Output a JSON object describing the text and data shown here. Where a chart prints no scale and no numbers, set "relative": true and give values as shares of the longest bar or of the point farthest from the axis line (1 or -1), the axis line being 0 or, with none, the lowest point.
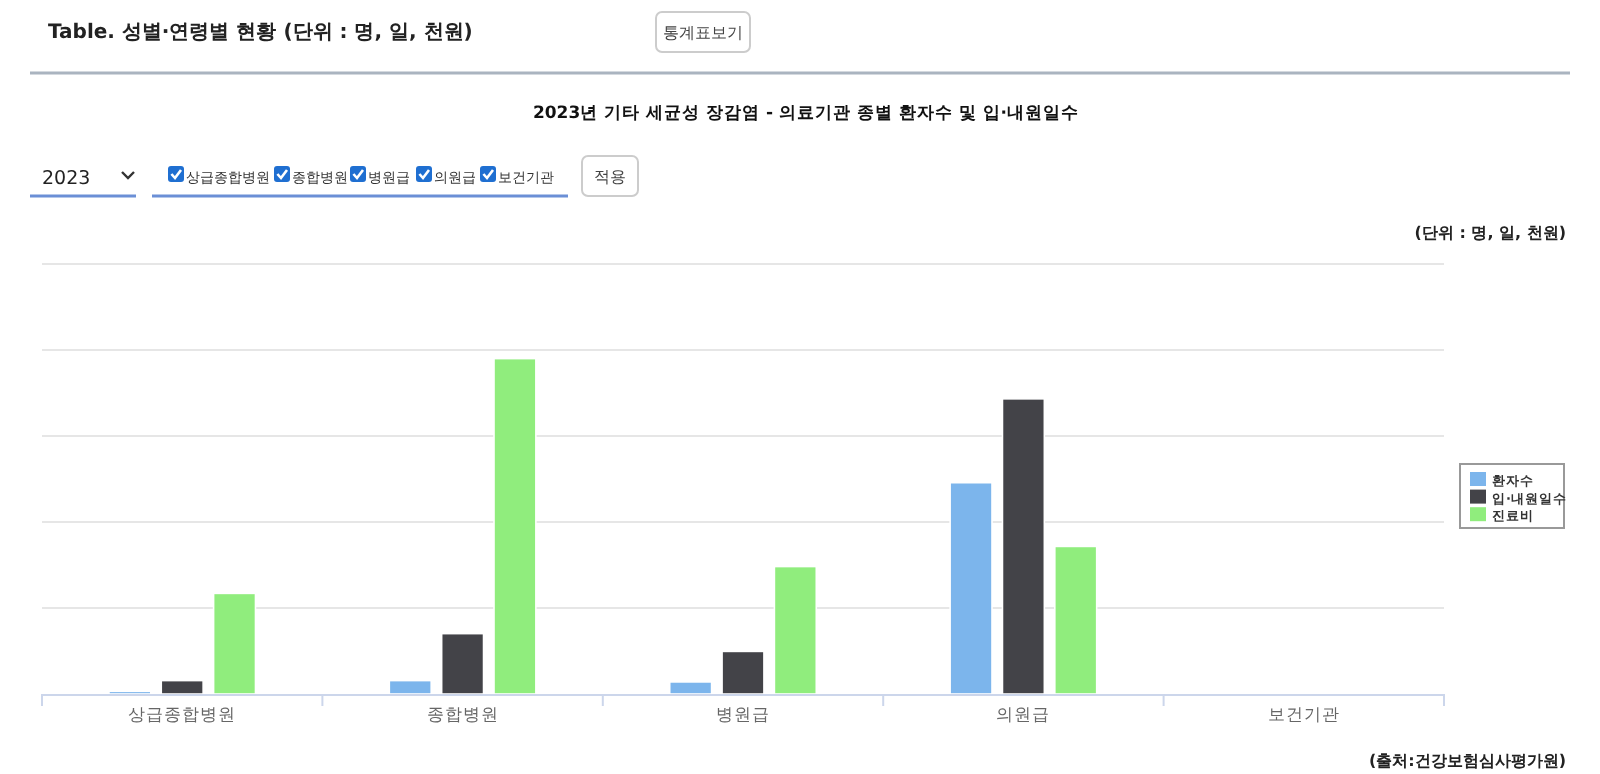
{
  "chart_data": {
    "type": "bar",
    "title": "2023년   기타 세균성 장감염 - 의료기관 종별 환자수 및 입·내원일수",
    "categories": [
      "상급종합병원",
      "종합병원",
      "병원급",
      "의원급",
      "보건기관"
    ],
    "relative": true,
    "series": [
      {
        "name": "환자수",
        "color": "#7cb5ec",
        "values": [
          0.008,
          0.04,
          0.036,
          0.63,
          0
        ]
      },
      {
        "name": "입·내원일수",
        "color": "#434348",
        "values": [
          0.04,
          0.18,
          0.127,
          0.88,
          0
        ]
      },
      {
        "name": "진료비",
        "color": "#90ed7d",
        "values": [
          0.3,
          1.0,
          0.38,
          0.44,
          0
        ]
      }
    ],
    "grid": "y",
    "legend": "right",
    "annotations": [
      "Table. 성별·연령별 현황 (단위 : 명, 일, 천원)",
      "통계표보기",
      "2023",
      "상급종합병원",
      "종합병원",
      "병원급",
      "의원급",
      "보건기관",
      "적용",
      "(단위 :   명, 일, 천원)",
      "(출처:건강보험심사평가원)"
    ]
  }
}
